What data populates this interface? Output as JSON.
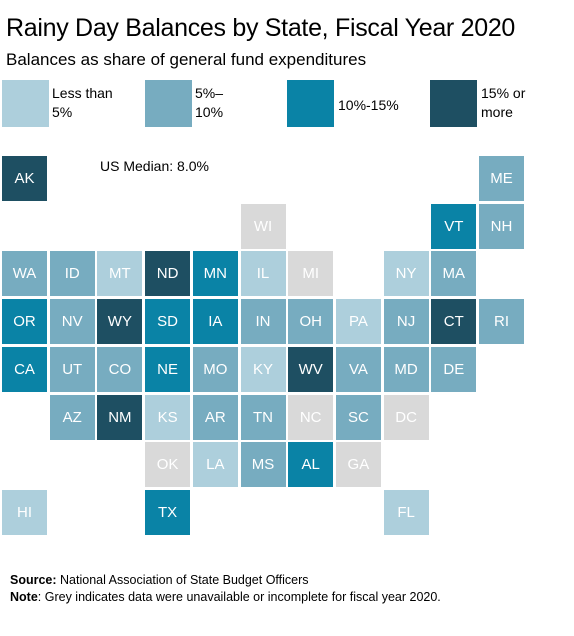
{
  "title": "Rainy Day Balances by State, Fiscal Year 2020",
  "subtitle": "Balances as share of general fund expenditures",
  "median_label": "US Median: 8.0%",
  "legend": [
    {
      "key": "low",
      "label_line1": "Less than",
      "label_line2": "5%",
      "color": "#adcfdc"
    },
    {
      "key": "mid",
      "label_line1": "5%–",
      "label_line2": "10%",
      "color": "#77acc0"
    },
    {
      "key": "high",
      "label_line1": "10%-15%",
      "label_line2": "",
      "color": "#0a83a6"
    },
    {
      "key": "top",
      "label_line1": "15% or",
      "label_line2": "more",
      "color": "#1e4f62"
    }
  ],
  "na_color": "#d9d9d9",
  "footer": {
    "source_label": "Source:",
    "source_text": " National Association of State Budget Officers",
    "note_label": "Note",
    "note_text": ": Grey indicates data were unavailable or incomplete for fiscal year 2020."
  },
  "states": [
    {
      "abbr": "AK",
      "row": 0,
      "col": 0,
      "category": "top"
    },
    {
      "abbr": "ME",
      "row": 0,
      "col": 10,
      "category": "mid"
    },
    {
      "abbr": "WI",
      "row": 1,
      "col": 5,
      "category": "na"
    },
    {
      "abbr": "VT",
      "row": 1,
      "col": 9,
      "category": "high"
    },
    {
      "abbr": "NH",
      "row": 1,
      "col": 10,
      "category": "mid"
    },
    {
      "abbr": "WA",
      "row": 2,
      "col": 0,
      "category": "mid"
    },
    {
      "abbr": "ID",
      "row": 2,
      "col": 1,
      "category": "mid"
    },
    {
      "abbr": "MT",
      "row": 2,
      "col": 2,
      "category": "low"
    },
    {
      "abbr": "ND",
      "row": 2,
      "col": 3,
      "category": "top"
    },
    {
      "abbr": "MN",
      "row": 2,
      "col": 4,
      "category": "high"
    },
    {
      "abbr": "IL",
      "row": 2,
      "col": 5,
      "category": "low"
    },
    {
      "abbr": "MI",
      "row": 2,
      "col": 6,
      "category": "na"
    },
    {
      "abbr": "NY",
      "row": 2,
      "col": 8,
      "category": "low"
    },
    {
      "abbr": "MA",
      "row": 2,
      "col": 9,
      "category": "mid"
    },
    {
      "abbr": "OR",
      "row": 3,
      "col": 0,
      "category": "high"
    },
    {
      "abbr": "NV",
      "row": 3,
      "col": 1,
      "category": "mid"
    },
    {
      "abbr": "WY",
      "row": 3,
      "col": 2,
      "category": "top"
    },
    {
      "abbr": "SD",
      "row": 3,
      "col": 3,
      "category": "high"
    },
    {
      "abbr": "IA",
      "row": 3,
      "col": 4,
      "category": "high"
    },
    {
      "abbr": "IN",
      "row": 3,
      "col": 5,
      "category": "mid"
    },
    {
      "abbr": "OH",
      "row": 3,
      "col": 6,
      "category": "mid"
    },
    {
      "abbr": "PA",
      "row": 3,
      "col": 7,
      "category": "low"
    },
    {
      "abbr": "NJ",
      "row": 3,
      "col": 8,
      "category": "mid"
    },
    {
      "abbr": "CT",
      "row": 3,
      "col": 9,
      "category": "top"
    },
    {
      "abbr": "RI",
      "row": 3,
      "col": 10,
      "category": "mid"
    },
    {
      "abbr": "CA",
      "row": 4,
      "col": 0,
      "category": "high"
    },
    {
      "abbr": "UT",
      "row": 4,
      "col": 1,
      "category": "mid"
    },
    {
      "abbr": "CO",
      "row": 4,
      "col": 2,
      "category": "mid"
    },
    {
      "abbr": "NE",
      "row": 4,
      "col": 3,
      "category": "high"
    },
    {
      "abbr": "MO",
      "row": 4,
      "col": 4,
      "category": "mid"
    },
    {
      "abbr": "KY",
      "row": 4,
      "col": 5,
      "category": "low"
    },
    {
      "abbr": "WV",
      "row": 4,
      "col": 6,
      "category": "top"
    },
    {
      "abbr": "VA",
      "row": 4,
      "col": 7,
      "category": "mid"
    },
    {
      "abbr": "MD",
      "row": 4,
      "col": 8,
      "category": "mid"
    },
    {
      "abbr": "DE",
      "row": 4,
      "col": 9,
      "category": "mid"
    },
    {
      "abbr": "AZ",
      "row": 5,
      "col": 1,
      "category": "mid"
    },
    {
      "abbr": "NM",
      "row": 5,
      "col": 2,
      "category": "top"
    },
    {
      "abbr": "KS",
      "row": 5,
      "col": 3,
      "category": "low"
    },
    {
      "abbr": "AR",
      "row": 5,
      "col": 4,
      "category": "mid"
    },
    {
      "abbr": "TN",
      "row": 5,
      "col": 5,
      "category": "mid"
    },
    {
      "abbr": "NC",
      "row": 5,
      "col": 6,
      "category": "na"
    },
    {
      "abbr": "SC",
      "row": 5,
      "col": 7,
      "category": "mid"
    },
    {
      "abbr": "DC",
      "row": 5,
      "col": 8,
      "category": "na"
    },
    {
      "abbr": "OK",
      "row": 6,
      "col": 3,
      "category": "na"
    },
    {
      "abbr": "LA",
      "row": 6,
      "col": 4,
      "category": "low"
    },
    {
      "abbr": "MS",
      "row": 6,
      "col": 5,
      "category": "mid"
    },
    {
      "abbr": "AL",
      "row": 6,
      "col": 6,
      "category": "high"
    },
    {
      "abbr": "GA",
      "row": 6,
      "col": 7,
      "category": "na"
    },
    {
      "abbr": "HI",
      "row": 7,
      "col": 0,
      "category": "low"
    },
    {
      "abbr": "TX",
      "row": 7,
      "col": 3,
      "category": "high"
    },
    {
      "abbr": "FL",
      "row": 7,
      "col": 8,
      "category": "low"
    }
  ]
}
